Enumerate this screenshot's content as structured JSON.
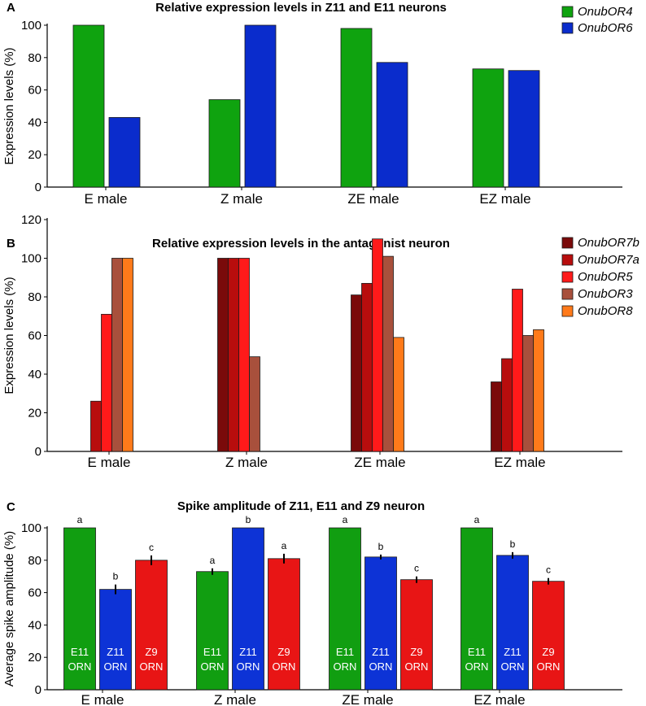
{
  "panels": [
    {
      "label": "A",
      "chart_data": {
        "type": "bar",
        "title": "Relative expression levels in Z11 and E11 neurons",
        "xlabel": "",
        "ylabel": "Expression levels (%)",
        "ylim": [
          0,
          100
        ],
        "yticks": [
          "0",
          "20",
          "40",
          "60",
          "80",
          "100"
        ],
        "categories": [
          "E male",
          "Z male",
          "ZE male",
          "EZ male"
        ],
        "series": [
          {
            "name": "OnubOR4",
            "color": "#0fa30f",
            "values": [
              100,
              54,
              98,
              73
            ]
          },
          {
            "name": "OnubOR6",
            "color": "#0a2ccc",
            "values": [
              43,
              100,
              77,
              72
            ]
          }
        ],
        "legend": "top-right"
      }
    },
    {
      "label": "B",
      "chart_data": {
        "type": "bar",
        "title": "Relative expression levels in the antagonist neuron",
        "xlabel": "",
        "ylabel": "Expression levels (%)",
        "ylim": [
          0,
          120
        ],
        "yticks": [
          "0",
          "20",
          "40",
          "60",
          "80",
          "100",
          "120"
        ],
        "categories": [
          "E male",
          "Z male",
          "ZE male",
          "EZ male"
        ],
        "series": [
          {
            "name": "OnubOR7b",
            "color": "#7a0a0a",
            "values": [
              0,
              100,
              81,
              36
            ]
          },
          {
            "name": "OnubOR7a",
            "color": "#b80d0d",
            "values": [
              26,
              100,
              87,
              48
            ]
          },
          {
            "name": "OnubOR5",
            "color": "#ff1a1a",
            "values": [
              71,
              100,
              110,
              84
            ]
          },
          {
            "name": "OnubOR3",
            "color": "#a8503c",
            "values": [
              100,
              49,
              101,
              60
            ]
          },
          {
            "name": "OnubOR8",
            "color": "#ff7a1a",
            "values": [
              100,
              0,
              59,
              63
            ]
          }
        ],
        "legend": "top-right"
      }
    },
    {
      "label": "C",
      "chart_data": {
        "type": "bar",
        "title": "Spike amplitude of Z11, E11 and Z9 neuron",
        "xlabel": "",
        "ylabel": "Average spike amplitude (%)",
        "ylim": [
          0,
          100
        ],
        "yticks": [
          "0",
          "20",
          "40",
          "60",
          "80",
          "100"
        ],
        "categories": [
          "E male",
          "Z male",
          "ZE male",
          "EZ male"
        ],
        "series": [
          {
            "name": "E11 ORN",
            "color": "#119e11",
            "values": [
              100,
              73,
              100,
              100
            ],
            "errors": [
              0,
              2,
              0,
              0
            ],
            "letters": [
              "a",
              "a",
              "a",
              "a"
            ]
          },
          {
            "name": "Z11 ORN",
            "color": "#0d33d6",
            "values": [
              62,
              100,
              82,
              83
            ],
            "errors": [
              3,
              0,
              1.5,
              2
            ],
            "letters": [
              "b",
              "b",
              "b",
              "b"
            ]
          },
          {
            "name": "Z9 ORN",
            "color": "#e81515",
            "values": [
              80,
              81,
              68,
              67
            ],
            "errors": [
              3,
              3,
              2,
              2
            ],
            "letters": [
              "c",
              "a",
              "c",
              "c"
            ]
          }
        ],
        "bar_label_lines": [
          [
            "E11",
            "ORN"
          ],
          [
            "Z11",
            "ORN"
          ],
          [
            "Z9",
            "ORN"
          ]
        ]
      }
    }
  ]
}
